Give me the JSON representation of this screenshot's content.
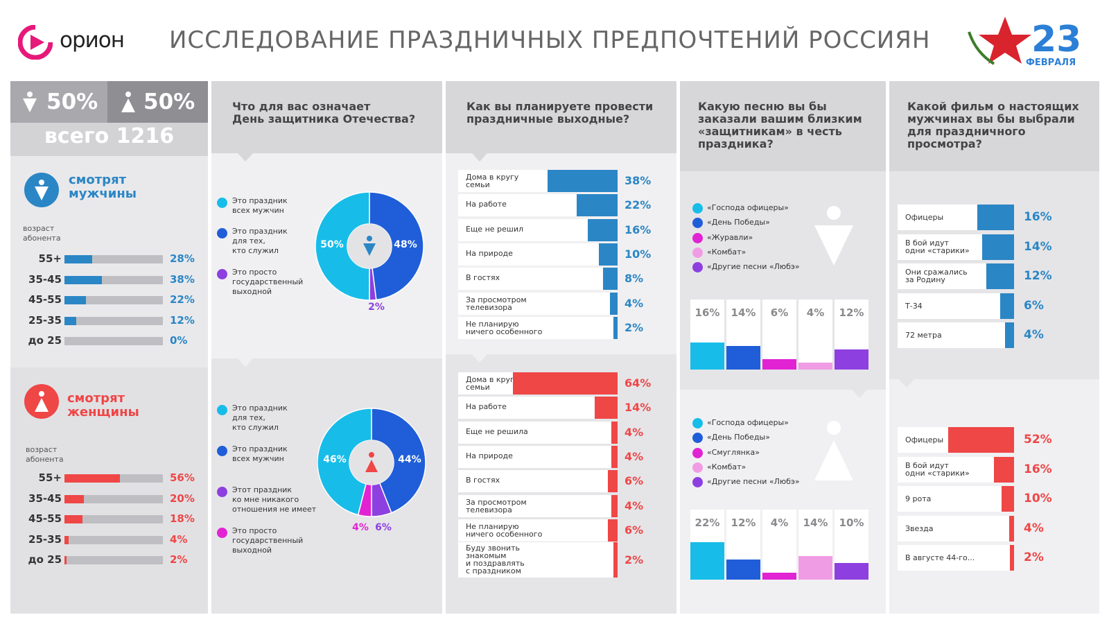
{
  "header": {
    "logo_text": "орион",
    "title": "ИССЛЕДОВАНИЕ ПРАЗДНИЧНЫХ ПРЕДПОЧТЕНИЙ РОССИЯН",
    "badge_text": "ФЕВРАЛЯ",
    "badge_number": "23"
  },
  "colors": {
    "blue": "#2b86c5",
    "red": "#ef4646",
    "cyan": "#17bde8",
    "royal": "#1f5ed8",
    "magenta": "#e123d3",
    "pink": "#f09ce4",
    "violet": "#8d3fe0",
    "grey": "#8e8e93"
  },
  "audience": {
    "male_share": "50%",
    "female_share": "50%",
    "total": "всего 1216",
    "men": {
      "title_1": "смотрят",
      "title_2": "мужчины",
      "age_label_1": "возраст",
      "age_label_2": "абонента",
      "rows": [
        {
          "age": "55+",
          "pct": "28%",
          "value": 28
        },
        {
          "age": "35-45",
          "pct": "38%",
          "value": 38
        },
        {
          "age": "45-55",
          "pct": "22%",
          "value": 22
        },
        {
          "age": "25-35",
          "pct": "12%",
          "value": 12
        },
        {
          "age": "до 25",
          "pct": "0%",
          "value": 0
        }
      ]
    },
    "women": {
      "title_1": "смотрят",
      "title_2": "женщины",
      "age_label_1": "возраст",
      "age_label_2": "абонента",
      "rows": [
        {
          "age": "55+",
          "pct": "56%",
          "value": 56
        },
        {
          "age": "35-45",
          "pct": "20%",
          "value": 20
        },
        {
          "age": "45-55",
          "pct": "18%",
          "value": 18
        },
        {
          "age": "25-35",
          "pct": "4%",
          "value": 4
        },
        {
          "age": "до 25",
          "pct": "2%",
          "value": 2
        }
      ]
    }
  },
  "q1": {
    "question": [
      "Что для вас означает",
      "День защитника Отечества?"
    ],
    "men": {
      "legend": [
        [
          "Это праздник",
          "всех мужчин"
        ],
        [
          "Это праздник",
          "для тех,",
          "кто служил"
        ],
        [
          "Это просто",
          "государственный",
          "выходной"
        ]
      ],
      "slices": [
        {
          "label": "50%",
          "value": 50,
          "color": "#17bde8"
        },
        {
          "label": "48%",
          "value": 48,
          "color": "#1f5ed8"
        },
        {
          "label": "2%",
          "value": 2,
          "color": "#8d3fe0"
        }
      ]
    },
    "women": {
      "legend": [
        [
          "Это праздник",
          "для тех,",
          "кто служил"
        ],
        [
          "Это праздник",
          "всех мужчин"
        ],
        [
          "Этот праздник",
          "ко мне никакого",
          "отношения не имеет"
        ],
        [
          "Это просто",
          "государственный",
          "выходной"
        ]
      ],
      "slices": [
        {
          "label": "46%",
          "value": 46,
          "color": "#17bde8"
        },
        {
          "label": "44%",
          "value": 44,
          "color": "#1f5ed8"
        },
        {
          "label": "6%",
          "value": 6,
          "color": "#8d3fe0"
        },
        {
          "label": "4%",
          "value": 4,
          "color": "#e123d3"
        }
      ]
    }
  },
  "q2": {
    "question": [
      "Как вы планируете провести",
      "праздничные выходные?"
    ],
    "men": [
      {
        "label": [
          "Дома в кругу",
          "семьи"
        ],
        "pct": "38%",
        "value": 38
      },
      {
        "label": [
          "На работе"
        ],
        "pct": "22%",
        "value": 22
      },
      {
        "label": [
          "Еще не решил"
        ],
        "pct": "16%",
        "value": 16
      },
      {
        "label": [
          "На природе"
        ],
        "pct": "10%",
        "value": 10
      },
      {
        "label": [
          "В гостях"
        ],
        "pct": "8%",
        "value": 8
      },
      {
        "label": [
          "За просмотром",
          "телевизора"
        ],
        "pct": "4%",
        "value": 4
      },
      {
        "label": [
          "Не планирую",
          "ничего особенного"
        ],
        "pct": "2%",
        "value": 2
      }
    ],
    "women": [
      {
        "label": [
          "Дома в кругу",
          "семьи"
        ],
        "pct": "64%",
        "value": 64
      },
      {
        "label": [
          "На работе"
        ],
        "pct": "14%",
        "value": 14
      },
      {
        "label": [
          "Еще не решила"
        ],
        "pct": "4%",
        "value": 4
      },
      {
        "label": [
          "На природе"
        ],
        "pct": "4%",
        "value": 4
      },
      {
        "label": [
          "В гостях"
        ],
        "pct": "6%",
        "value": 6
      },
      {
        "label": [
          "За просмотром",
          "телевизора"
        ],
        "pct": "4%",
        "value": 4
      },
      {
        "label": [
          "Не планирую",
          "ничего особенного"
        ],
        "pct": "6%",
        "value": 6
      },
      {
        "label": [
          "Буду звонить",
          "знакомым",
          "и поздравлять",
          "с праздником"
        ],
        "pct": "2%",
        "value": 2
      }
    ]
  },
  "q3": {
    "question": [
      "Какую песню вы бы",
      "заказали вашим близким",
      "«защитникам» в честь",
      "праздника?"
    ],
    "men": {
      "legend": [
        "«Господа офицеры»",
        "«День Победы»",
        "«Журавли»",
        "«Комбат»",
        "«Другие песни «Любэ»"
      ],
      "bars": [
        {
          "pct": "16%",
          "value": 16,
          "color": "#17bde8"
        },
        {
          "pct": "14%",
          "value": 14,
          "color": "#1f5ed8"
        },
        {
          "pct": "6%",
          "value": 6,
          "color": "#e123d3"
        },
        {
          "pct": "4%",
          "value": 4,
          "color": "#f09ce4"
        },
        {
          "pct": "12%",
          "value": 12,
          "color": "#8d3fe0"
        }
      ]
    },
    "women": {
      "legend": [
        "«Господа офицеры»",
        "«День Победы»",
        "«Смуглянка»",
        "«Комбат»",
        "«Другие песни «Любэ»"
      ],
      "bars": [
        {
          "pct": "22%",
          "value": 22,
          "color": "#17bde8"
        },
        {
          "pct": "12%",
          "value": 12,
          "color": "#1f5ed8"
        },
        {
          "pct": "4%",
          "value": 4,
          "color": "#e123d3"
        },
        {
          "pct": "14%",
          "value": 14,
          "color": "#f09ce4"
        },
        {
          "pct": "10%",
          "value": 10,
          "color": "#8d3fe0"
        }
      ]
    }
  },
  "q4": {
    "question": [
      "Какой фильм о настоящих",
      "мужчинах вы бы выбрали",
      "для праздничного",
      "просмотра?"
    ],
    "men": [
      {
        "label": [
          "Офицеры"
        ],
        "pct": "16%",
        "value": 16
      },
      {
        "label": [
          "В бой идут",
          "одни «старики»"
        ],
        "pct": "14%",
        "value": 14
      },
      {
        "label": [
          "Они сражались",
          "за Родину"
        ],
        "pct": "12%",
        "value": 12
      },
      {
        "label": [
          "Т-34"
        ],
        "pct": "6%",
        "value": 6
      },
      {
        "label": [
          "72 метра"
        ],
        "pct": "4%",
        "value": 4
      }
    ],
    "women": [
      {
        "label": [
          "Офицеры"
        ],
        "pct": "52%",
        "value": 52
      },
      {
        "label": [
          "В бой идут",
          "одни «старики»"
        ],
        "pct": "16%",
        "value": 16
      },
      {
        "label": [
          "9 рота"
        ],
        "pct": "10%",
        "value": 10
      },
      {
        "label": [
          "Звезда"
        ],
        "pct": "4%",
        "value": 4
      },
      {
        "label": [
          "В августе 44-го..."
        ],
        "pct": "2%",
        "value": 2
      }
    ]
  },
  "chart_data": [
    {
      "type": "bar",
      "title": "смотрят мужчины",
      "xlabel": "возраст абонента",
      "categories": [
        "55+",
        "35-45",
        "45-55",
        "25-35",
        "до 25"
      ],
      "values": [
        28,
        38,
        22,
        12,
        0
      ]
    },
    {
      "type": "bar",
      "title": "смотрят женщины",
      "xlabel": "возраст абонента",
      "categories": [
        "55+",
        "35-45",
        "45-55",
        "25-35",
        "до 25"
      ],
      "values": [
        56,
        20,
        18,
        4,
        2
      ]
    },
    {
      "type": "pie",
      "title": "Что для вас означает День защитника Отечества?",
      "categories": [
        "Это праздник всех мужчин",
        "Это праздник для тех, кто служил",
        "Это просто государственный выходной"
      ],
      "values": [
        50,
        48,
        2
      ]
    },
    {
      "type": "pie",
      "title": "Что для вас означает День защитника Отечества?",
      "categories": [
        "Это праздник для тех, кто служил",
        "Это праздник всех мужчин",
        "Этот праздник ко мне никакого отношения не имеет",
        "Это просто государственный выходной"
      ],
      "values": [
        46,
        44,
        6,
        4
      ]
    },
    {
      "type": "bar",
      "title": "Как вы планируете провести праздничные выходные?",
      "categories": [
        "Дома в кругу семьи",
        "На работе",
        "Еще не решил",
        "На природе",
        "В гостях",
        "За просмотром телевизора",
        "Не планирую ничего особенного"
      ],
      "values": [
        38,
        22,
        16,
        10,
        8,
        4,
        2
      ]
    },
    {
      "type": "bar",
      "title": "Как вы планируете провести праздничные выходные?",
      "categories": [
        "Дома в кругу семьи",
        "На работе",
        "Еще не решила",
        "На природе",
        "В гостях",
        "За просмотром телевизора",
        "Не планирую ничего особенного",
        "Буду звонить знакомым и поздравлять с праздником"
      ],
      "values": [
        64,
        14,
        4,
        4,
        6,
        4,
        6,
        2
      ]
    },
    {
      "type": "bar",
      "title": "Какую песню вы бы заказали вашим близким «защитникам» в честь праздника?",
      "categories": [
        "«Господа офицеры»",
        "«День Победы»",
        "«Журавли»",
        "«Комбат»",
        "«Другие песни «Любэ»"
      ],
      "values": [
        16,
        14,
        6,
        4,
        12
      ]
    },
    {
      "type": "bar",
      "title": "Какую песню вы бы заказали вашим близким «защитникам» в честь праздника?",
      "categories": [
        "«Господа офицеры»",
        "«День Победы»",
        "«Смуглянка»",
        "«Комбат»",
        "«Другие песни «Любэ»"
      ],
      "values": [
        22,
        12,
        4,
        14,
        10
      ]
    },
    {
      "type": "bar",
      "title": "Какой фильм о настоящих мужчинах вы бы выбрали для праздничного просмотра?",
      "categories": [
        "Офицеры",
        "В бой идут одни «старики»",
        "Они сражались за Родину",
        "Т-34",
        "72 метра"
      ],
      "values": [
        16,
        14,
        12,
        6,
        4
      ]
    },
    {
      "type": "bar",
      "title": "Какой фильм о настоящих мужчинах вы бы выбрали для праздничного просмотра?",
      "categories": [
        "Офицеры",
        "В бой идут одни «старики»",
        "9 рота",
        "Звезда",
        "В августе 44-го..."
      ],
      "values": [
        52,
        16,
        10,
        4,
        2
      ]
    }
  ]
}
